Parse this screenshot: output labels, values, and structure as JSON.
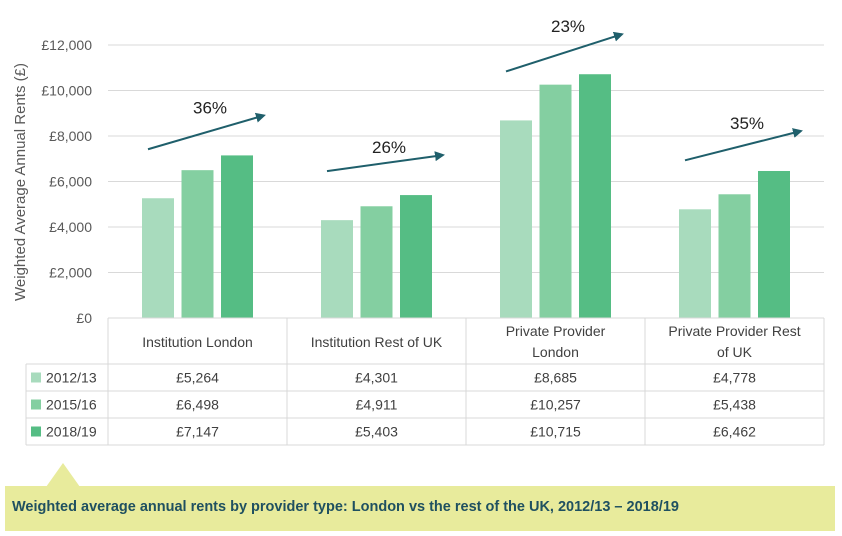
{
  "chart_data": {
    "type": "bar",
    "ylabel": "Weighted Average Annual Rents (£)",
    "ylim": [
      0,
      12000
    ],
    "yticks": [
      0,
      2000,
      4000,
      6000,
      8000,
      10000,
      12000
    ],
    "ytick_labels": [
      "£0",
      "£2,000",
      "£4,000",
      "£6,000",
      "£8,000",
      "£10,000",
      "£12,000"
    ],
    "categories": [
      [
        "Institution London"
      ],
      [
        "Institution Rest of UK"
      ],
      [
        "Private Provider",
        "London"
      ],
      [
        "Private Provider Rest",
        "of UK"
      ]
    ],
    "series": [
      {
        "name": "2012/13",
        "color": "#a8dbbd",
        "values": [
          5264,
          4301,
          8685,
          4778
        ],
        "labels": [
          "£5,264",
          "£4,301",
          "£8,685",
          "£4,778"
        ]
      },
      {
        "name": "2015/16",
        "color": "#84cfa1",
        "values": [
          6498,
          4911,
          10257,
          5438
        ],
        "labels": [
          "£6,498",
          "£4,911",
          "£10,257",
          "£5,438"
        ]
      },
      {
        "name": "2018/19",
        "color": "#55bd84",
        "values": [
          7147,
          5403,
          10715,
          6462
        ],
        "labels": [
          "£7,147",
          "£5,403",
          "£10,715",
          "£6,462"
        ]
      }
    ],
    "growth_annotations": [
      "36%",
      "26%",
      "23%",
      "35%"
    ],
    "arrow_color": "#1f5f6b",
    "grid": true
  },
  "caption": "Weighted average annual rents by provider type: London vs the rest of the UK, 2012/13 – 2018/19"
}
